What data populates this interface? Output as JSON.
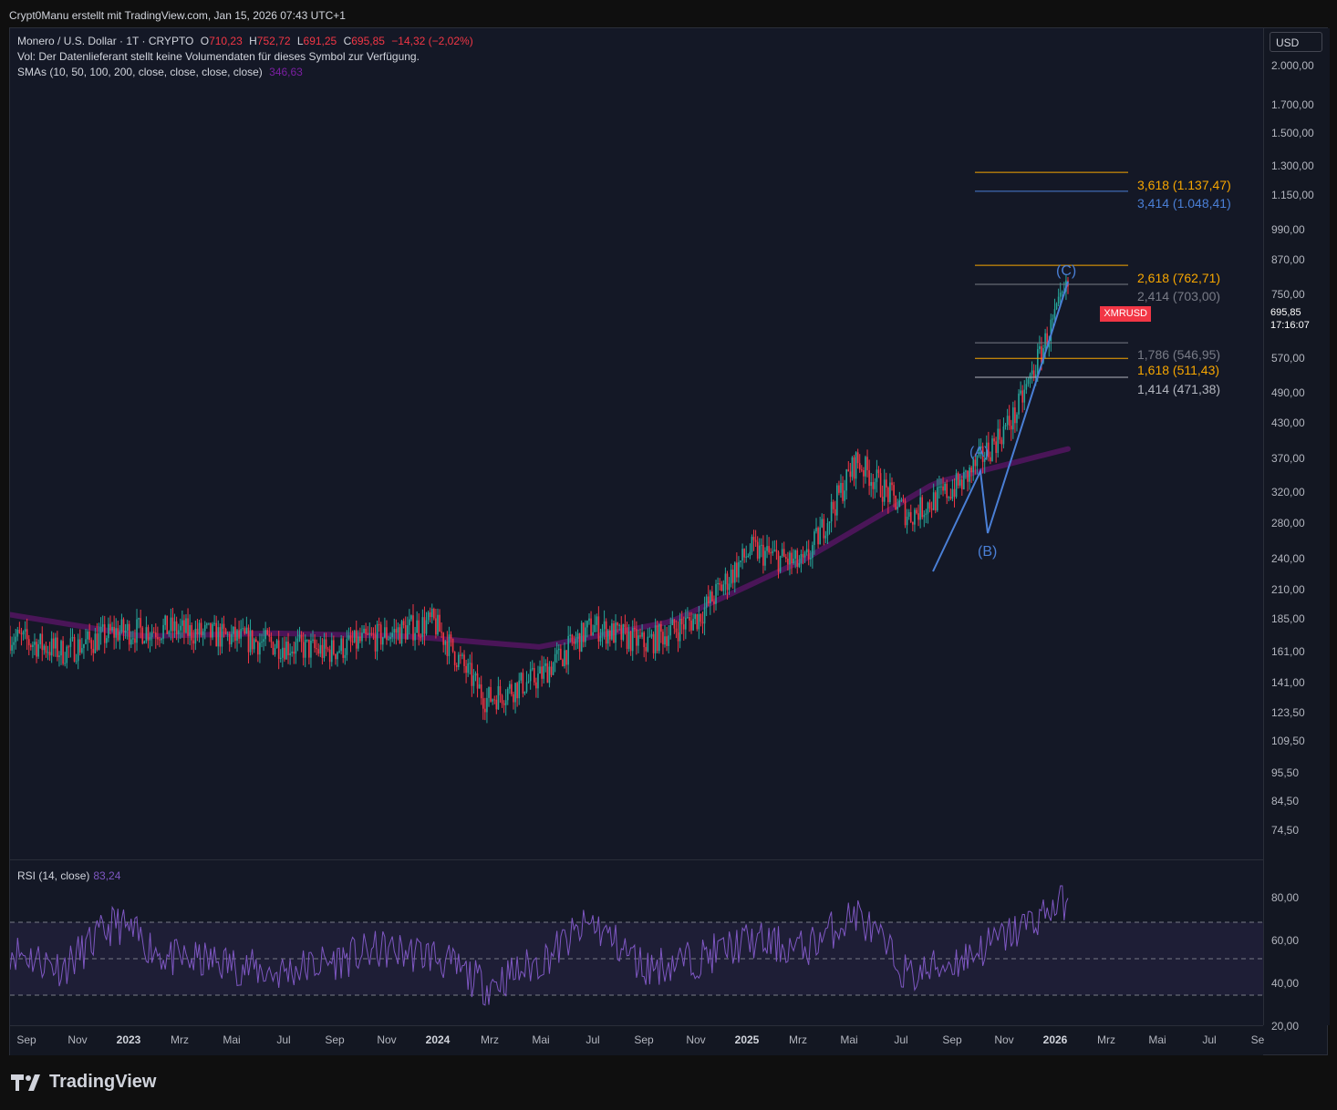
{
  "header": {
    "attribution": "Crypt0Manu erstellt mit TradingView.com, Jan 15, 2026 07:43 UTC+1"
  },
  "legend": {
    "symbol": "Monero / U.S. Dollar · 1T · CRYPTO",
    "o_label": "O",
    "o_value": "710,23",
    "h_label": "H",
    "h_value": "752,72",
    "l_label": "L",
    "l_value": "691,25",
    "c_label": "C",
    "c_value": "695,85",
    "change": "−14,32 (−2,02%)",
    "vol": "Vol: Der Datenlieferant stellt keine Volumendaten für dieses Symbol zur Verfügung.",
    "sma_label": "SMAs (10, 50, 100, 200, close, close, close, close)",
    "sma_value": "346,63"
  },
  "rsi": {
    "label": "RSI (14, close)",
    "value": "83,24",
    "ticks": [
      "80,00",
      "60,00",
      "40,00",
      "20,00"
    ]
  },
  "currency": "USD",
  "price_ticks": [
    "2.000,00",
    "1.700,00",
    "1.500,00",
    "1.300,00",
    "1.150,00",
    "990,00",
    "870,00",
    "750,00",
    "570,00",
    "490,00",
    "430,00",
    "370,00",
    "320,00",
    "280,00",
    "240,00",
    "210,00",
    "185,00",
    "161,00",
    "141,00",
    "123,50",
    "109,50",
    "95,50",
    "84,50",
    "74,50"
  ],
  "time_ticks": [
    "Sep",
    "Nov",
    "2023",
    "Mrz",
    "Mai",
    "Jul",
    "Sep",
    "Nov",
    "2024",
    "Mrz",
    "Mai",
    "Jul",
    "Sep",
    "Nov",
    "2025",
    "Mrz",
    "Mai",
    "Jul",
    "Sep",
    "Nov",
    "2026",
    "Mrz",
    "Mai",
    "Jul",
    "Se"
  ],
  "last_price": {
    "symbol": "XMRUSD",
    "price": "695,85",
    "countdown": "17:16:07"
  },
  "fib_levels": [
    {
      "label": "3,618 (1.137,47)",
      "color": "#f7a600"
    },
    {
      "label": "3,414 (1.048,41)",
      "color": "#4a7fd6"
    },
    {
      "label": "2,618 (762,71)",
      "color": "#f7a600"
    },
    {
      "label": "2,414 (703,00)",
      "color": "#787b86"
    },
    {
      "label": "1,786 (546,95)",
      "color": "#787b86"
    },
    {
      "label": "1,618 (511,43)",
      "color": "#f7a600"
    },
    {
      "label": "1,414 (471,38)",
      "color": "#b2b5be"
    }
  ],
  "waves": {
    "a": "(A)",
    "b": "(B)",
    "c": "(C)"
  },
  "brand": {
    "name": "TradingView"
  },
  "colors": {
    "up": "#26a69a",
    "down": "#f23645",
    "sma": "#4a1558",
    "rsi": "#7e57c2",
    "wave_line": "#4a7fd6"
  },
  "chart_data": {
    "type": "candlestick",
    "title": "Monero / U.S. Dollar · 1T · CRYPTO",
    "price_scale": "log",
    "series": [
      {
        "name": "XMRUSD",
        "x": [
          "2022-09",
          "2022-11",
          "2023-01",
          "2023-03",
          "2023-05",
          "2023-07",
          "2023-09",
          "2023-11",
          "2024-01",
          "2024-03",
          "2024-05",
          "2024-07",
          "2024-09",
          "2024-11",
          "2025-01",
          "2025-03",
          "2025-05",
          "2025-07",
          "2025-09",
          "2025-11",
          "2026-01"
        ],
        "close": [
          155,
          145,
          158,
          160,
          155,
          150,
          145,
          155,
          165,
          118,
          130,
          162,
          150,
          168,
          225,
          210,
          330,
          260,
          300,
          400,
          695.85
        ]
      },
      {
        "name": "SMA",
        "x": [
          "2022-09",
          "2023-03",
          "2023-09",
          "2024-03",
          "2024-09",
          "2025-01",
          "2025-05",
          "2025-09",
          "2026-01"
        ],
        "values": [
          170,
          155,
          157,
          155,
          148,
          165,
          215,
          300,
          346.63
        ]
      },
      {
        "name": "RSI",
        "values": [
          55,
          45,
          70,
          50,
          48,
          42,
          48,
          55,
          52,
          35,
          48,
          70,
          45,
          50,
          60,
          55,
          75,
          40,
          50,
          65,
          83.24
        ]
      }
    ]
  }
}
